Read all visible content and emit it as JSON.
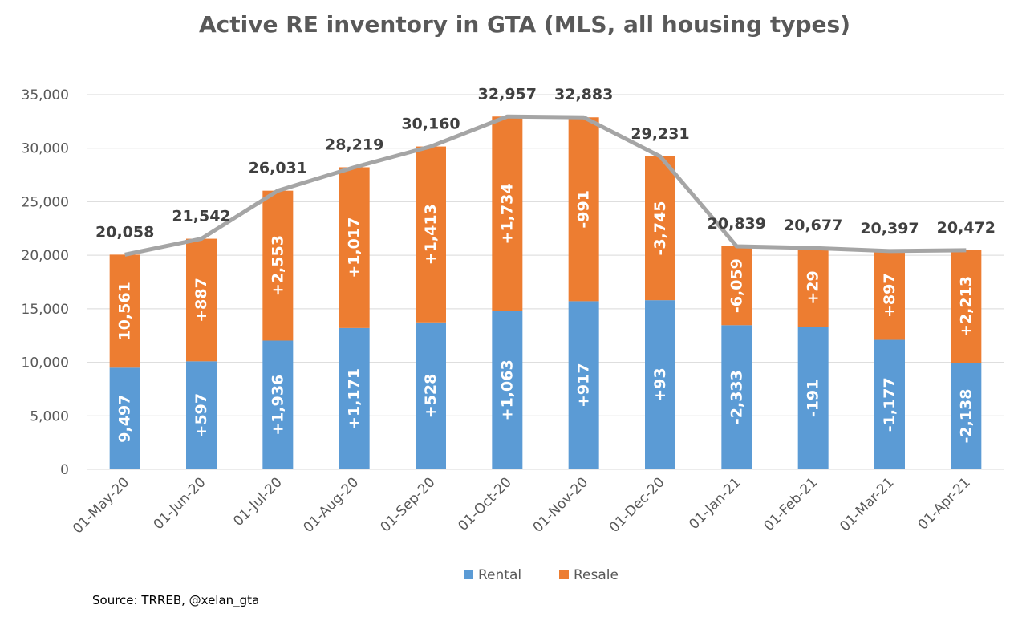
{
  "chart_data": {
    "type": "bar",
    "stacked": true,
    "title": "Active RE inventory in GTA (MLS, all housing types)",
    "categories": [
      "01-May-20",
      "01-Jun-20",
      "01-Jul-20",
      "01-Aug-20",
      "01-Sep-20",
      "01-Oct-20",
      "01-Nov-20",
      "01-Dec-20",
      "01-Jan-21",
      "01-Feb-21",
      "01-Mar-21",
      "01-Apr-21"
    ],
    "series": [
      {
        "name": "Rental",
        "color": "#5B9BD5",
        "values": [
          9497,
          10094,
          12030,
          13201,
          13729,
          14792,
          15709,
          15802,
          13469,
          13278,
          12101,
          9963
        ],
        "labels": [
          "9,497",
          "+597",
          "+1,936",
          "+1,171",
          "+528",
          "+1,063",
          "+917",
          "+93",
          "-2,333",
          "-191",
          "-1,177",
          "-2,138"
        ]
      },
      {
        "name": "Resale",
        "color": "#ED7D31",
        "values": [
          10561,
          11448,
          14001,
          15018,
          16431,
          18165,
          17174,
          13429,
          7370,
          7399,
          8296,
          10509
        ],
        "labels": [
          "10,561",
          "+887",
          "+2,553",
          "+1,017",
          "+1,413",
          "+1,734",
          "-991",
          "-3,745",
          "-6,059",
          "+29",
          "+897",
          "+2,213"
        ]
      }
    ],
    "totals": [
      20058,
      21542,
      26031,
      28219,
      30160,
      32957,
      32883,
      29231,
      20839,
      20677,
      20397,
      20472
    ],
    "total_labels": [
      "20,058",
      "21,542",
      "26,031",
      "28,219",
      "30,160",
      "32,957",
      "32,883",
      "29,231",
      "20,839",
      "20,677",
      "20,397",
      "20,472"
    ],
    "total_line_color": "#A5A5A5",
    "ylim": [
      0,
      35000
    ],
    "yticks": [
      0,
      5000,
      10000,
      15000,
      20000,
      25000,
      30000,
      35000
    ],
    "ytick_labels": [
      "0",
      "5,000",
      "10,000",
      "15,000",
      "20,000",
      "25,000",
      "30,000",
      "35,000"
    ],
    "grid": true,
    "legend_position": "bottom",
    "source": "Source: TRREB, @xelan_gta"
  }
}
